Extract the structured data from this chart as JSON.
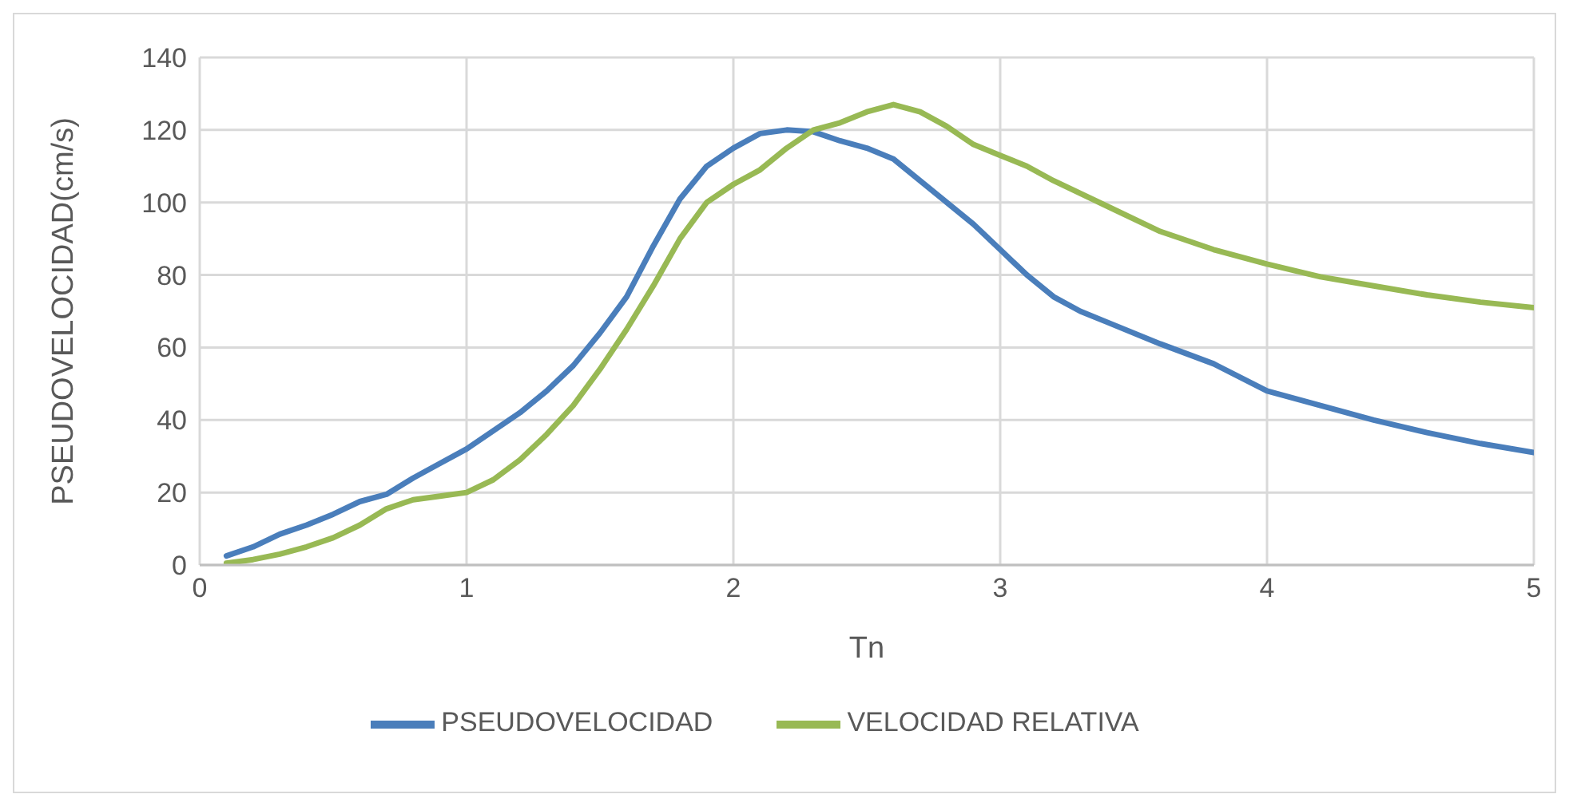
{
  "chart_data": {
    "type": "line",
    "xlabel": "Tn",
    "ylabel": "PSEUDOVELOCIDAD(cm/s)",
    "xlim": [
      0,
      5
    ],
    "xticks": [
      0,
      1,
      2,
      3,
      4,
      5
    ],
    "ylim": [
      0,
      140
    ],
    "yticks": [
      0,
      20,
      40,
      60,
      80,
      100,
      120,
      140
    ],
    "grid": true,
    "legend": "bottom",
    "marker": "none",
    "line_style": "solid",
    "series": [
      {
        "name": "PSEUDOVELOCIDAD",
        "color": "#4a7ebb",
        "x": [
          0.1,
          0.2,
          0.3,
          0.4,
          0.5,
          0.6,
          0.7,
          0.8,
          0.9,
          1.0,
          1.1,
          1.2,
          1.3,
          1.4,
          1.5,
          1.6,
          1.7,
          1.8,
          1.9,
          2.0,
          2.1,
          2.2,
          2.3,
          2.4,
          2.5,
          2.6,
          2.7,
          2.8,
          2.9,
          3.0,
          3.1,
          3.2,
          3.3,
          3.4,
          3.6,
          3.8,
          4.0,
          4.2,
          4.4,
          4.6,
          4.8,
          5.0
        ],
        "values": [
          2.5,
          5,
          8.5,
          11,
          14,
          17.5,
          19.5,
          24,
          28,
          32,
          37,
          42,
          48,
          55,
          64,
          74,
          88,
          101,
          110,
          115,
          119,
          120,
          119.5,
          117,
          115,
          112,
          106,
          100,
          94,
          87,
          80,
          74,
          70,
          67,
          61,
          55.5,
          48,
          44,
          40,
          36.5,
          33.5,
          31
        ]
      },
      {
        "name": "VELOCIDAD RELATIVA",
        "color": "#98b954",
        "x": [
          0.1,
          0.2,
          0.3,
          0.4,
          0.5,
          0.6,
          0.7,
          0.8,
          0.9,
          1.0,
          1.1,
          1.2,
          1.3,
          1.4,
          1.5,
          1.6,
          1.7,
          1.8,
          1.9,
          2.0,
          2.1,
          2.2,
          2.3,
          2.4,
          2.5,
          2.6,
          2.7,
          2.8,
          2.9,
          3.0,
          3.1,
          3.2,
          3.4,
          3.6,
          3.8,
          4.0,
          4.2,
          4.4,
          4.6,
          4.8,
          5.0
        ],
        "values": [
          0.5,
          1.5,
          3,
          5,
          7.5,
          11,
          15.5,
          18,
          19,
          20,
          23.5,
          29,
          36,
          44,
          54,
          65,
          77,
          90,
          100,
          105,
          109,
          115,
          120,
          122,
          125,
          127,
          125,
          121,
          116,
          113,
          110,
          106,
          99,
          92,
          87,
          83,
          79.5,
          77,
          74.5,
          72.5,
          71
        ]
      }
    ]
  }
}
